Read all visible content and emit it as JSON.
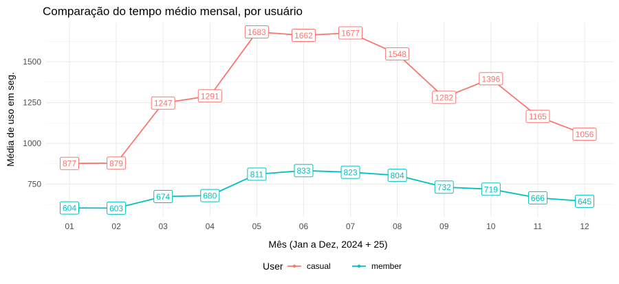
{
  "chart_data": {
    "type": "line",
    "title": "Comparação do tempo médio mensal, por usuário",
    "xlabel": "Mês (Jan a Dez, 2024 + 25)",
    "ylabel": "Média de uso em seg.",
    "categories": [
      "01",
      "02",
      "03",
      "04",
      "05",
      "06",
      "07",
      "08",
      "09",
      "10",
      "11",
      "12"
    ],
    "y_ticks": [
      750,
      1000,
      1250,
      1500
    ],
    "ylim": [
      550,
      1740
    ],
    "grid": true,
    "legend": {
      "title": "User",
      "position": "bottom"
    },
    "series": [
      {
        "name": "casual",
        "color": "#F8766D",
        "values": [
          877,
          879,
          1247,
          1291,
          1683,
          1662,
          1677,
          1548,
          1282,
          1396,
          1165,
          1056
        ]
      },
      {
        "name": "member",
        "color": "#00BFC4",
        "values": [
          604,
          603,
          674,
          680,
          811,
          833,
          823,
          804,
          732,
          719,
          666,
          645
        ]
      }
    ]
  }
}
